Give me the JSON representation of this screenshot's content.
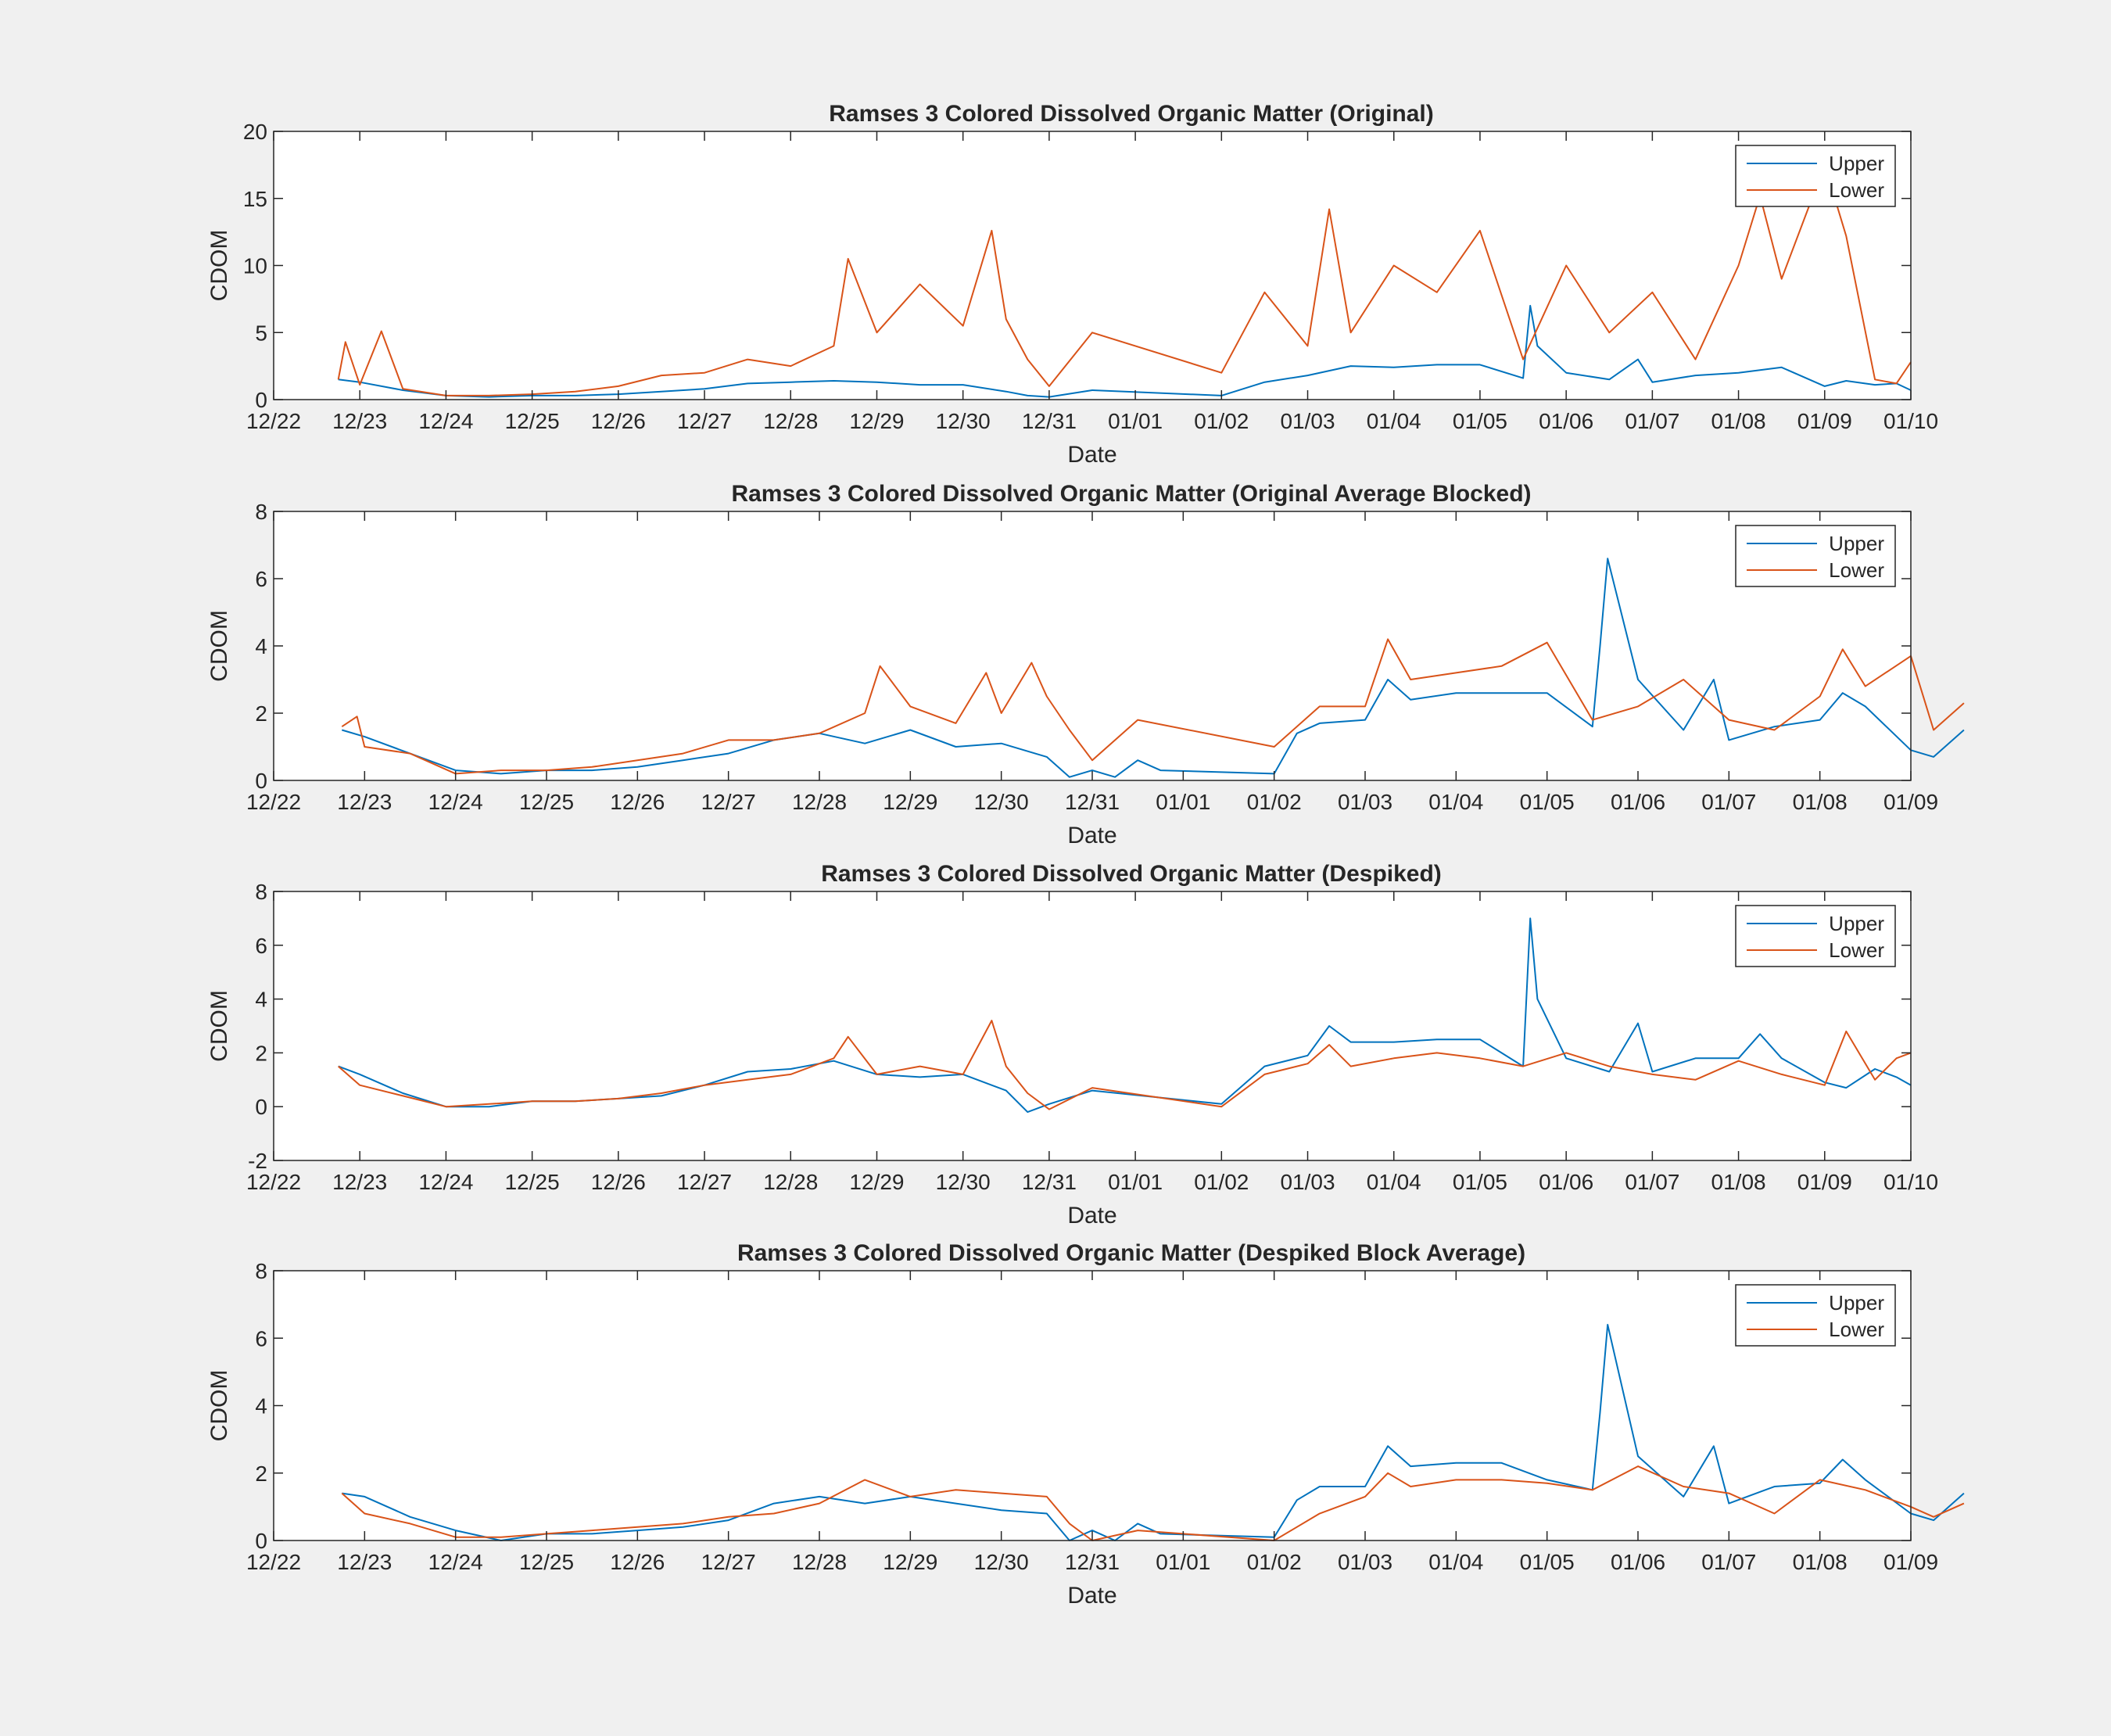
{
  "colors": {
    "upper": "#0072BD",
    "lower": "#D95319",
    "background": "#f0f0f0"
  },
  "chart_data": [
    {
      "type": "line",
      "title": "Ramses 3 Colored Dissolved Organic Matter (Original)",
      "xlabel": "Date",
      "ylabel": "CDOM",
      "xlim": [
        0,
        19
      ],
      "ylim": [
        0,
        20
      ],
      "yticks": [
        0,
        5,
        10,
        15,
        20
      ],
      "xtick_labels": [
        "12/22",
        "12/23",
        "12/24",
        "12/25",
        "12/26",
        "12/27",
        "12/28",
        "12/29",
        "12/30",
        "12/31",
        "01/01",
        "01/02",
        "01/03",
        "01/04",
        "01/05",
        "01/06",
        "01/07",
        "01/08",
        "01/09",
        "01/10"
      ],
      "legend": [
        "Upper",
        "Lower"
      ],
      "legend_position": "top-right",
      "grid": false,
      "series": [
        {
          "name": "Upper",
          "color": "#0072BD",
          "x": [
            "12/22 18:00",
            "12/23 00:00",
            "12/23 12:00",
            "12/24 00:00",
            "12/24 12:00",
            "12/25 00:00",
            "12/25 12:00",
            "12/26 00:00",
            "12/26 12:00",
            "12/27 00:00",
            "12/27 12:00",
            "12/28 00:00",
            "12/28 12:00",
            "12/29 00:00",
            "12/29 12:00",
            "12/30 00:00",
            "12/30 12:00",
            "12/30 18:00",
            "12/31 00:00",
            "12/31 12:00",
            "01/01 00:00",
            "01/01 12:00",
            "01/02 00:00",
            "01/02 12:00",
            "01/03 00:00",
            "01/03 12:00",
            "01/04 00:00",
            "01/04 12:00",
            "01/04 14:00",
            "01/04 16:00",
            "01/05 00:00",
            "01/05 12:00",
            "01/05 20:00",
            "01/06 00:00",
            "01/06 12:00",
            "01/07 00:00",
            "01/07 12:00",
            "01/08 00:00",
            "01/08 06:00",
            "01/08 14:00",
            "01/08 20:00",
            "01/09 00:00"
          ],
          "values": [
            1.5,
            1.3,
            0.7,
            0.3,
            0.2,
            0.3,
            0.3,
            0.4,
            0.6,
            0.8,
            1.2,
            1.3,
            1.4,
            1.3,
            1.1,
            1.1,
            0.6,
            0.3,
            0.2,
            0.7,
            0.3,
            1.3,
            1.8,
            2.5,
            2.4,
            2.6,
            2.6,
            1.6,
            7.0,
            4.0,
            2.0,
            1.5,
            3.0,
            1.3,
            1.8,
            2.0,
            2.4,
            1.0,
            1.4,
            1.1,
            1.2,
            0.7
          ]
        },
        {
          "name": "Lower",
          "color": "#D95319",
          "x": [
            "12/22 18:00",
            "12/22 20:00",
            "12/23 00:00",
            "12/23 06:00",
            "12/23 12:00",
            "12/24 00:00",
            "12/24 12:00",
            "12/25 00:00",
            "12/25 12:00",
            "12/26 00:00",
            "12/26 12:00",
            "12/27 00:00",
            "12/27 12:00",
            "12/28 00:00",
            "12/28 12:00",
            "12/28 16:00",
            "12/29 00:00",
            "12/29 12:00",
            "12/30 00:00",
            "12/30 08:00",
            "12/30 12:00",
            "12/30 18:00",
            "12/31 00:00",
            "12/31 12:00",
            "01/01 00:00",
            "01/01 12:00",
            "01/02 00:00",
            "01/02 06:00",
            "01/02 12:00",
            "01/03 00:00",
            "01/03 12:00",
            "01/04 00:00",
            "01/04 12:00",
            "01/05 00:00",
            "01/05 12:00",
            "01/06 00:00",
            "01/06 12:00",
            "01/07 00:00",
            "01/07 06:00",
            "01/07 12:00",
            "01/08 00:00",
            "01/08 06:00",
            "01/08 14:00",
            "01/08 20:00",
            "01/09 00:00"
          ],
          "values": [
            1.5,
            4.3,
            1.1,
            5.1,
            0.8,
            0.3,
            0.3,
            0.4,
            0.6,
            1.0,
            1.8,
            2.0,
            3.0,
            2.5,
            4.0,
            10.5,
            5.0,
            8.6,
            5.5,
            12.6,
            6.0,
            3.0,
            1.0,
            5.0,
            2.0,
            8.0,
            4.0,
            14.2,
            5.0,
            10.0,
            8.0,
            12.6,
            3.0,
            10.0,
            5.0,
            8.0,
            3.0,
            10.0,
            15.2,
            9.0,
            17.5,
            12.2,
            1.5,
            1.2,
            2.8
          ]
        }
      ]
    },
    {
      "type": "line",
      "title": "Ramses 3 Colored Dissolved Organic Matter (Original Average Blocked)",
      "xlabel": "Date",
      "ylabel": "CDOM",
      "xlim": [
        0,
        18
      ],
      "ylim": [
        0,
        8
      ],
      "yticks": [
        0,
        2,
        4,
        6,
        8
      ],
      "xtick_labels": [
        "12/22",
        "12/23",
        "12/24",
        "12/25",
        "12/26",
        "12/27",
        "12/28",
        "12/29",
        "12/30",
        "12/31",
        "01/01",
        "01/02",
        "01/03",
        "01/04",
        "01/05",
        "01/06",
        "01/07",
        "01/08",
        "01/09"
      ],
      "legend": [
        "Upper",
        "Lower"
      ],
      "legend_position": "top-right",
      "grid": false,
      "series": [
        {
          "name": "Upper",
          "color": "#0072BD",
          "x": [
            "12/22 18:00",
            "12/23 00:00",
            "12/23 12:00",
            "12/24 00:00",
            "12/24 12:00",
            "12/25 00:00",
            "12/25 12:00",
            "12/26 00:00",
            "12/26 12:00",
            "12/27 00:00",
            "12/27 12:00",
            "12/28 00:00",
            "12/28 12:00",
            "12/29 00:00",
            "12/29 12:00",
            "12/30 00:00",
            "12/30 12:00",
            "12/30 18:00",
            "12/31 00:00",
            "12/31 06:00",
            "12/31 12:00",
            "12/31 18:00",
            "01/01 00:00",
            "01/01 06:00",
            "01/01 12:00",
            "01/02 00:00",
            "01/02 06:00",
            "01/02 12:00",
            "01/03 00:00",
            "01/03 12:00",
            "01/04 00:00",
            "01/04 12:00",
            "01/04 14:00",
            "01/04 16:00",
            "01/05 00:00",
            "01/05 12:00",
            "01/05 20:00",
            "01/06 00:00",
            "01/06 12:00",
            "01/07 00:00",
            "01/07 06:00",
            "01/07 12:00",
            "01/08 00:00",
            "01/08 06:00",
            "01/08 14:00"
          ],
          "values": [
            1.5,
            1.3,
            0.8,
            0.3,
            0.2,
            0.3,
            0.3,
            0.4,
            0.6,
            0.8,
            1.2,
            1.4,
            1.1,
            1.5,
            1.0,
            1.1,
            0.7,
            0.1,
            0.3,
            0.1,
            0.6,
            0.3,
            0.2,
            1.4,
            1.7,
            1.8,
            3.0,
            2.4,
            2.6,
            2.6,
            2.6,
            1.6,
            4.0,
            6.6,
            3.0,
            1.5,
            3.0,
            1.2,
            1.6,
            1.8,
            2.6,
            2.2,
            0.9,
            0.7,
            1.5
          ]
        },
        {
          "name": "Lower",
          "color": "#D95319",
          "x": [
            "12/22 18:00",
            "12/22 22:00",
            "12/23 00:00",
            "12/23 12:00",
            "12/24 00:00",
            "12/24 12:00",
            "12/25 00:00",
            "12/25 12:00",
            "12/26 00:00",
            "12/26 12:00",
            "12/27 00:00",
            "12/27 12:00",
            "12/28 00:00",
            "12/28 12:00",
            "12/28 16:00",
            "12/29 00:00",
            "12/29 12:00",
            "12/29 20:00",
            "12/30 00:00",
            "12/30 08:00",
            "12/30 12:00",
            "12/30 18:00",
            "12/31 00:00",
            "12/31 12:00",
            "01/01 00:00",
            "01/01 12:00",
            "01/02 00:00",
            "01/02 06:00",
            "01/02 12:00",
            "01/03 00:00",
            "01/03 12:00",
            "01/04 00:00",
            "01/04 12:00",
            "01/05 00:00",
            "01/05 12:00",
            "01/06 00:00",
            "01/06 12:00",
            "01/07 00:00",
            "01/07 06:00",
            "01/07 12:00",
            "01/08 00:00",
            "01/08 06:00",
            "01/08 14:00"
          ],
          "values": [
            1.6,
            1.9,
            1.0,
            0.8,
            0.2,
            0.3,
            0.3,
            0.4,
            0.6,
            0.8,
            1.2,
            1.2,
            1.4,
            2.0,
            3.4,
            2.2,
            1.7,
            3.2,
            2.0,
            3.5,
            2.5,
            1.5,
            0.6,
            1.8,
            1.0,
            2.2,
            2.2,
            4.2,
            3.0,
            3.2,
            3.4,
            4.1,
            1.8,
            2.2,
            3.0,
            1.8,
            1.5,
            2.5,
            3.9,
            2.8,
            3.7,
            1.5,
            2.3
          ]
        }
      ]
    },
    {
      "type": "line",
      "title": "Ramses 3 Colored Dissolved Organic Matter (Despiked)",
      "xlabel": "Date",
      "ylabel": "CDOM",
      "xlim": [
        0,
        19
      ],
      "ylim": [
        -2,
        8
      ],
      "yticks": [
        -2,
        0,
        2,
        4,
        6,
        8
      ],
      "xtick_labels": [
        "12/22",
        "12/23",
        "12/24",
        "12/25",
        "12/26",
        "12/27",
        "12/28",
        "12/29",
        "12/30",
        "12/31",
        "01/01",
        "01/02",
        "01/03",
        "01/04",
        "01/05",
        "01/06",
        "01/07",
        "01/08",
        "01/09",
        "01/10"
      ],
      "legend": [
        "Upper",
        "Lower"
      ],
      "legend_position": "top-right",
      "grid": false,
      "series": [
        {
          "name": "Upper",
          "color": "#0072BD",
          "x": [
            "12/22 18:00",
            "12/23 00:00",
            "12/23 12:00",
            "12/24 00:00",
            "12/24 12:00",
            "12/25 00:00",
            "12/25 12:00",
            "12/26 00:00",
            "12/26 12:00",
            "12/27 00:00",
            "12/27 12:00",
            "12/28 00:00",
            "12/28 12:00",
            "12/29 00:00",
            "12/29 12:00",
            "12/30 00:00",
            "12/30 12:00",
            "12/30 18:00",
            "12/31 00:00",
            "12/31 12:00",
            "01/01 00:00",
            "01/01 12:00",
            "01/02 00:00",
            "01/02 06:00",
            "01/02 12:00",
            "01/03 00:00",
            "01/03 12:00",
            "01/04 00:00",
            "01/04 12:00",
            "01/04 14:00",
            "01/04 16:00",
            "01/05 00:00",
            "01/05 12:00",
            "01/05 20:00",
            "01/06 00:00",
            "01/06 12:00",
            "01/07 00:00",
            "01/07 06:00",
            "01/07 12:00",
            "01/08 00:00",
            "01/08 06:00",
            "01/08 14:00",
            "01/08 20:00",
            "01/09 00:00"
          ],
          "values": [
            1.5,
            1.2,
            0.5,
            0.0,
            0.0,
            0.2,
            0.2,
            0.3,
            0.4,
            0.8,
            1.3,
            1.4,
            1.7,
            1.2,
            1.1,
            1.2,
            0.6,
            -0.2,
            0.1,
            0.6,
            0.1,
            1.5,
            1.9,
            3.0,
            2.4,
            2.4,
            2.5,
            2.5,
            1.5,
            7.0,
            4.0,
            1.8,
            1.3,
            3.1,
            1.3,
            1.8,
            1.8,
            2.7,
            1.8,
            0.9,
            0.7,
            1.4,
            1.1,
            0.8
          ]
        },
        {
          "name": "Lower",
          "color": "#D95319",
          "x": [
            "12/22 18:00",
            "12/23 00:00",
            "12/23 12:00",
            "12/24 00:00",
            "12/24 12:00",
            "12/25 00:00",
            "12/25 12:00",
            "12/26 00:00",
            "12/26 12:00",
            "12/27 00:00",
            "12/27 12:00",
            "12/28 00:00",
            "12/28 12:00",
            "12/28 16:00",
            "12/29 00:00",
            "12/29 12:00",
            "12/30 00:00",
            "12/30 08:00",
            "12/30 12:00",
            "12/30 18:00",
            "12/31 00:00",
            "12/31 12:00",
            "01/01 00:00",
            "01/01 12:00",
            "01/02 00:00",
            "01/02 06:00",
            "01/02 12:00",
            "01/03 00:00",
            "01/03 12:00",
            "01/04 00:00",
            "01/04 12:00",
            "01/05 00:00",
            "01/05 12:00",
            "01/06 00:00",
            "01/06 12:00",
            "01/07 00:00",
            "01/07 12:00",
            "01/08 00:00",
            "01/08 06:00",
            "01/08 14:00",
            "01/08 20:00",
            "01/09 00:00"
          ],
          "values": [
            1.5,
            0.8,
            0.4,
            0.0,
            0.1,
            0.2,
            0.2,
            0.3,
            0.5,
            0.8,
            1.0,
            1.2,
            1.8,
            2.6,
            1.2,
            1.5,
            1.2,
            3.2,
            1.5,
            0.5,
            -0.1,
            0.7,
            0.0,
            1.2,
            1.6,
            2.3,
            1.5,
            1.8,
            2.0,
            1.8,
            1.5,
            2.0,
            1.5,
            1.2,
            1.0,
            1.7,
            1.2,
            0.8,
            2.8,
            1.0,
            1.8,
            2.0
          ]
        }
      ]
    },
    {
      "type": "line",
      "title": "Ramses 3 Colored Dissolved Organic Matter (Despiked Block Average)",
      "xlabel": "Date",
      "ylabel": "CDOM",
      "xlim": [
        0,
        18
      ],
      "ylim": [
        0,
        8
      ],
      "yticks": [
        0,
        2,
        4,
        6,
        8
      ],
      "xtick_labels": [
        "12/22",
        "12/23",
        "12/24",
        "12/25",
        "12/26",
        "12/27",
        "12/28",
        "12/29",
        "12/30",
        "12/31",
        "01/01",
        "01/02",
        "01/03",
        "01/04",
        "01/05",
        "01/06",
        "01/07",
        "01/08",
        "01/09"
      ],
      "legend": [
        "Upper",
        "Lower"
      ],
      "legend_position": "top-right",
      "grid": false,
      "series": [
        {
          "name": "Upper",
          "color": "#0072BD",
          "x": [
            "12/22 18:00",
            "12/23 00:00",
            "12/23 12:00",
            "12/24 00:00",
            "12/24 12:00",
            "12/25 00:00",
            "12/25 12:00",
            "12/26 00:00",
            "12/26 12:00",
            "12/27 00:00",
            "12/27 12:00",
            "12/28 00:00",
            "12/28 12:00",
            "12/29 00:00",
            "12/29 12:00",
            "12/30 00:00",
            "12/30 12:00",
            "12/30 18:00",
            "12/31 00:00",
            "12/31 06:00",
            "12/31 12:00",
            "12/31 18:00",
            "01/01 00:00",
            "01/01 06:00",
            "01/01 12:00",
            "01/02 00:00",
            "01/02 06:00",
            "01/02 12:00",
            "01/03 00:00",
            "01/03 12:00",
            "01/04 00:00",
            "01/04 12:00",
            "01/04 14:00",
            "01/04 16:00",
            "01/05 00:00",
            "01/05 12:00",
            "01/05 20:00",
            "01/06 00:00",
            "01/06 12:00",
            "01/07 00:00",
            "01/07 06:00",
            "01/07 12:00",
            "01/08 00:00",
            "01/08 06:00",
            "01/08 14:00"
          ],
          "values": [
            1.4,
            1.3,
            0.7,
            0.3,
            0.0,
            0.2,
            0.2,
            0.3,
            0.4,
            0.6,
            1.1,
            1.3,
            1.1,
            1.3,
            1.1,
            0.9,
            0.8,
            0.0,
            0.3,
            0.0,
            0.5,
            0.2,
            0.1,
            1.2,
            1.6,
            1.6,
            2.8,
            2.2,
            2.3,
            2.3,
            1.8,
            1.5,
            3.8,
            6.4,
            2.5,
            1.3,
            2.8,
            1.1,
            1.6,
            1.7,
            2.4,
            1.8,
            0.8,
            0.6,
            1.4
          ]
        },
        {
          "name": "Lower",
          "color": "#D95319",
          "x": [
            "12/22 18:00",
            "12/23 00:00",
            "12/23 12:00",
            "12/24 00:00",
            "12/24 12:00",
            "12/25 00:00",
            "12/25 12:00",
            "12/26 00:00",
            "12/26 12:00",
            "12/27 00:00",
            "12/27 12:00",
            "12/28 00:00",
            "12/28 12:00",
            "12/29 00:00",
            "12/29 12:00",
            "12/30 00:00",
            "12/30 12:00",
            "12/30 18:00",
            "12/31 00:00",
            "12/31 12:00",
            "01/01 00:00",
            "01/01 12:00",
            "01/02 00:00",
            "01/02 06:00",
            "01/02 12:00",
            "01/03 00:00",
            "01/03 12:00",
            "01/04 00:00",
            "01/04 12:00",
            "01/05 00:00",
            "01/05 12:00",
            "01/06 00:00",
            "01/06 12:00",
            "01/07 00:00",
            "01/07 12:00",
            "01/08 00:00",
            "01/08 06:00",
            "01/08 14:00"
          ],
          "values": [
            1.4,
            0.8,
            0.5,
            0.1,
            0.1,
            0.2,
            0.3,
            0.4,
            0.5,
            0.7,
            0.8,
            1.1,
            1.8,
            1.3,
            1.5,
            1.4,
            1.3,
            0.5,
            0.0,
            0.3,
            0.0,
            0.8,
            1.3,
            2.0,
            1.6,
            1.8,
            1.8,
            1.7,
            1.5,
            2.2,
            1.6,
            1.4,
            0.8,
            1.8,
            1.5,
            1.0,
            0.7,
            1.1
          ]
        }
      ]
    }
  ]
}
